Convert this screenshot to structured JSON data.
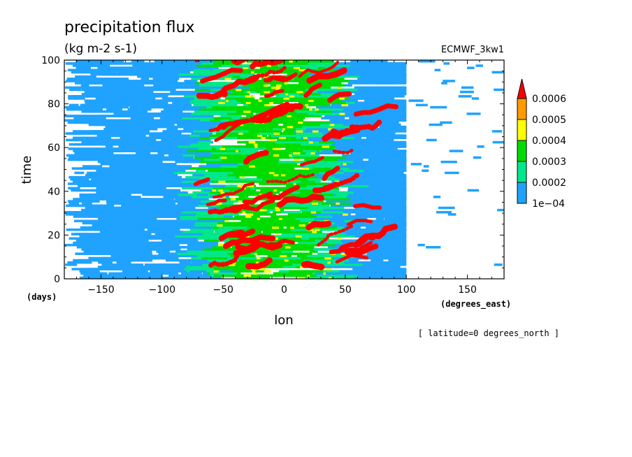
{
  "chart_data": {
    "type": "heatmap",
    "title": "precipitation flux",
    "subtitle": "(kg m-2 s-1)",
    "dataset": "ECMWF_3kw1",
    "xlabel": "lon",
    "ylabel": "time",
    "x_units": "(degrees_east)",
    "y_units": "(days)",
    "xlim": [
      -180,
      180
    ],
    "ylim": [
      0,
      100
    ],
    "x_ticks": [
      -150,
      -100,
      -50,
      0,
      50,
      100,
      150
    ],
    "x_tick_labels": [
      "−150",
      "−100",
      "−50",
      "0",
      "50",
      "100",
      "150"
    ],
    "y_ticks": [
      0,
      20,
      40,
      60,
      80,
      100
    ],
    "y_tick_labels": [
      "0",
      "20",
      "40",
      "60",
      "80",
      "100"
    ],
    "annotation": "[ latitude=0 degrees_north ]",
    "colorbar": {
      "levels": [
        0.0001,
        0.0002,
        0.0003,
        0.0004,
        0.0005,
        0.0006
      ],
      "level_labels": [
        "1e−04",
        "0.0002",
        "0.0003",
        "0.0004",
        "0.0005",
        "0.0006"
      ],
      "colors": [
        "#ffffff",
        "#1fa3ff",
        "#00e88a",
        "#00dc00",
        "#ffff00",
        "#ff9b00",
        "#ff0000"
      ]
    },
    "grid": false
  }
}
